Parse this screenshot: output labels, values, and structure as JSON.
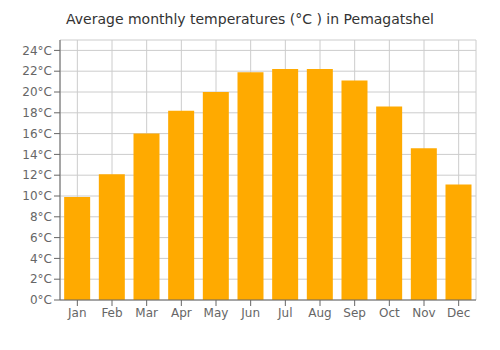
{
  "chart_data": {
    "type": "bar",
    "title": "Average monthly temperatures (°C ) in Pemagatshel",
    "categories": [
      "Jan",
      "Feb",
      "Mar",
      "Apr",
      "May",
      "Jun",
      "Jul",
      "Aug",
      "Sep",
      "Oct",
      "Nov",
      "Dec"
    ],
    "values": [
      9.9,
      12.1,
      16.0,
      18.2,
      20.0,
      21.9,
      22.2,
      22.2,
      21.1,
      18.6,
      14.6,
      11.1
    ],
    "color": "#FFAA00",
    "ylim": [
      0,
      25
    ],
    "yticks": [
      {
        "value": 0,
        "label": "0°C"
      },
      {
        "value": 2,
        "label": "2°C"
      },
      {
        "value": 4,
        "label": "4°C"
      },
      {
        "value": 6,
        "label": "6°C"
      },
      {
        "value": 8,
        "label": "8°C"
      },
      {
        "value": 10,
        "label": "10°C"
      },
      {
        "value": 12,
        "label": "12°C"
      },
      {
        "value": 14,
        "label": "14°C"
      },
      {
        "value": 16,
        "label": "16°C"
      },
      {
        "value": 18,
        "label": "18°C"
      },
      {
        "value": 20,
        "label": "20°C"
      },
      {
        "value": 22,
        "label": "22°C"
      },
      {
        "value": 24,
        "label": "24°C"
      }
    ],
    "grid": true
  }
}
